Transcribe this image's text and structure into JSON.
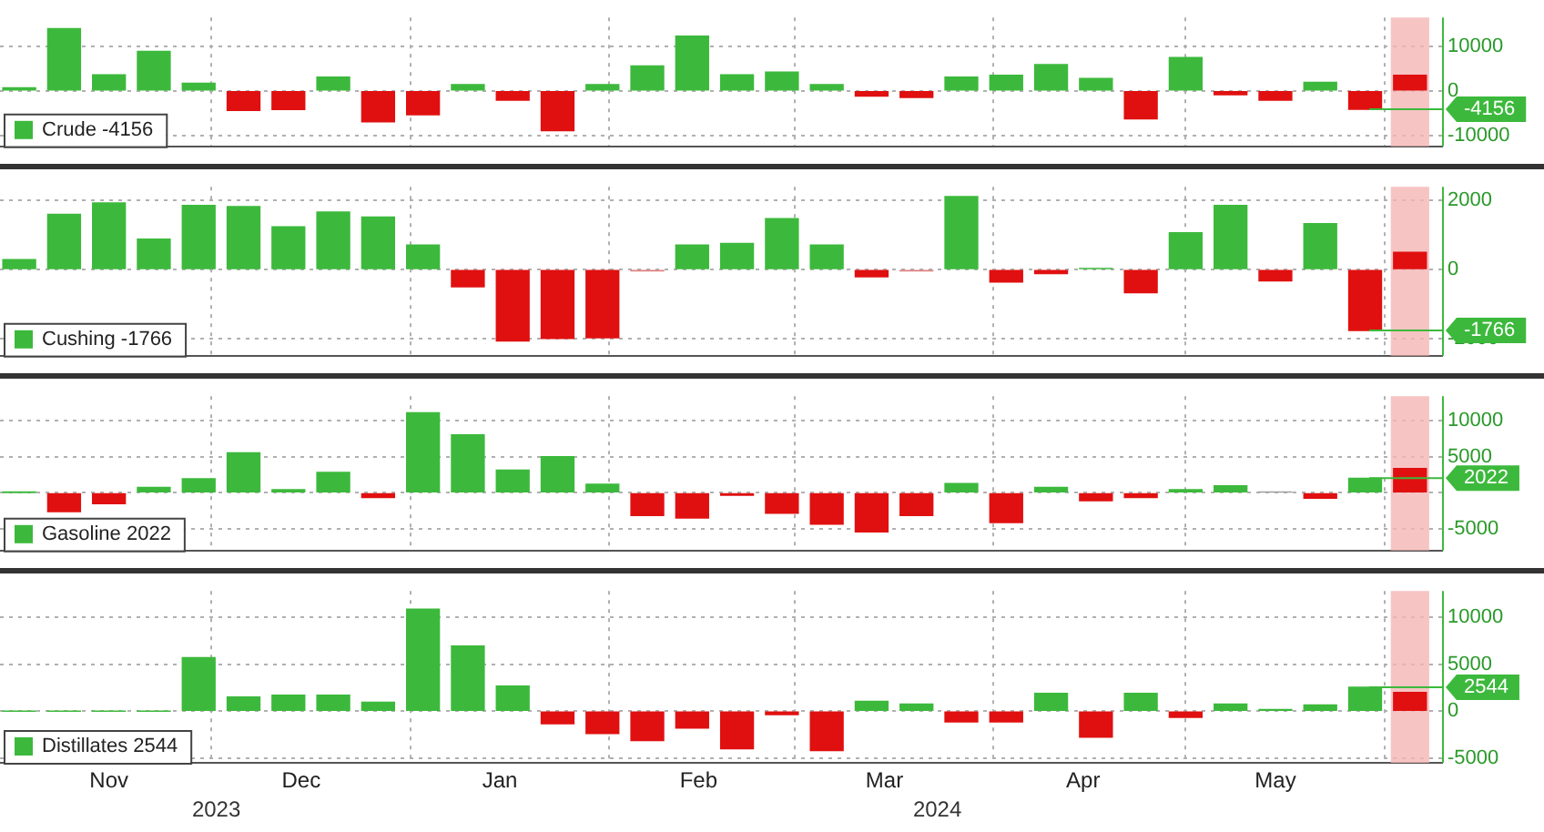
{
  "chart_data": [
    {
      "type": "bar",
      "x": [
        "2023-11-01",
        "2023-11-08",
        "2023-11-15",
        "2023-11-22",
        "2023-11-29",
        "2023-12-06",
        "2023-12-13",
        "2023-12-20",
        "2023-12-27",
        "2024-01-03",
        "2024-01-10",
        "2024-01-17",
        "2024-01-24",
        "2024-01-31",
        "2024-02-07",
        "2024-02-14",
        "2024-02-21",
        "2024-02-28",
        "2024-03-06",
        "2024-03-13",
        "2024-03-20",
        "2024-03-27",
        "2024-04-03",
        "2024-04-10",
        "2024-04-17",
        "2024-04-24",
        "2024-05-01",
        "2024-05-08",
        "2024-05-15",
        "2024-05-22",
        "2024-05-29",
        "2024-06-05"
      ],
      "series": [
        {
          "name": "Crude -4156",
          "color": "#3cb93c",
          "colors": [
            "#3cb93c",
            "#3cb93c",
            "#3cb93c",
            "#3cb93c",
            "#3cb93c",
            "#e01010",
            "#e01010",
            "#3cb93c",
            "#e01010",
            "#e01010",
            "#3cb93c",
            "#e01010",
            "#e01010",
            "#3cb93c",
            "#3cb93c",
            "#3cb93c",
            "#3cb93c",
            "#3cb93c",
            "#3cb93c",
            "#e01010",
            "#e01010",
            "#3cb93c",
            "#3cb93c",
            "#3cb93c",
            "#3cb93c",
            "#e01010",
            "#3cb93c",
            "#e01010",
            "#e01010",
            "#3cb93c",
            "#e01010",
            "#e01010"
          ],
          "values": [
            700,
            14000,
            3600,
            8900,
            1700,
            -4400,
            -4200,
            3100,
            -7000,
            -5400,
            1400,
            -2100,
            -9000,
            1400,
            5600,
            12300,
            3600,
            4200,
            1400,
            -1200,
            -1500,
            3100,
            3500,
            5900,
            2800,
            -6300,
            7500,
            -900,
            -2100,
            1900,
            -4156,
            3500
          ]
        }
      ],
      "xlim": [
        "2023-10-29",
        "2024-06-10"
      ],
      "xticks": [
        {
          "value": "2023-12-01",
          "label": null
        },
        {
          "value": "2024-01-01",
          "label": null
        },
        {
          "value": "2024-02-01",
          "label": null
        },
        {
          "value": "2024-03-01",
          "label": null
        },
        {
          "value": "2024-04-01",
          "label": null
        },
        {
          "value": "2024-05-01",
          "label": null
        },
        {
          "value": "2024-06-01",
          "label": null
        }
      ],
      "ylim": [
        -12500,
        16500
      ],
      "yticks": [
        -10000,
        0,
        10000
      ],
      "grid": true,
      "legend": "bottom left",
      "tick_labels": "y",
      "ref_lines": [
        {
          "axis": "y",
          "value": -4156,
          "label": "-4156",
          "color": "#3cb93c"
        }
      ],
      "bands": [
        {
          "axis": "x",
          "from": "2024-06-02",
          "to": "2024-06-08",
          "color": "#f5b5b5"
        }
      ]
    },
    {
      "type": "bar",
      "x": [
        "2023-11-01",
        "2023-11-08",
        "2023-11-15",
        "2023-11-22",
        "2023-11-29",
        "2023-12-06",
        "2023-12-13",
        "2023-12-20",
        "2023-12-27",
        "2024-01-03",
        "2024-01-10",
        "2024-01-17",
        "2024-01-24",
        "2024-01-31",
        "2024-02-07",
        "2024-02-14",
        "2024-02-21",
        "2024-02-28",
        "2024-03-06",
        "2024-03-13",
        "2024-03-20",
        "2024-03-27",
        "2024-04-03",
        "2024-04-10",
        "2024-04-17",
        "2024-04-24",
        "2024-05-01",
        "2024-05-08",
        "2024-05-15",
        "2024-05-22",
        "2024-05-29",
        "2024-06-05"
      ],
      "series": [
        {
          "name": "Cushing -1766",
          "color": "#3cb93c",
          "colors": [
            "#3cb93c",
            "#3cb93c",
            "#3cb93c",
            "#3cb93c",
            "#3cb93c",
            "#3cb93c",
            "#3cb93c",
            "#3cb93c",
            "#3cb93c",
            "#3cb93c",
            "#e01010",
            "#e01010",
            "#e01010",
            "#e01010",
            "#e08080",
            "#3cb93c",
            "#3cb93c",
            "#3cb93c",
            "#3cb93c",
            "#e01010",
            "#e08080",
            "#3cb93c",
            "#e01010",
            "#e01010",
            "#3cb93c",
            "#e01010",
            "#3cb93c",
            "#3cb93c",
            "#e01010",
            "#3cb93c",
            "#e01010",
            "#e01010"
          ],
          "values": [
            290,
            1600,
            1930,
            880,
            1860,
            1830,
            1240,
            1670,
            1520,
            710,
            -500,
            -2070,
            -2000,
            -1980,
            -40,
            710,
            760,
            1480,
            710,
            -210,
            -40,
            2120,
            -360,
            -120,
            30,
            -670,
            1070,
            1860,
            -330,
            1330,
            -1766,
            500
          ]
        }
      ],
      "xlim": [
        "2023-10-29",
        "2024-06-10"
      ],
      "xticks": [
        {
          "value": "2023-12-01",
          "label": null
        },
        {
          "value": "2024-01-01",
          "label": null
        },
        {
          "value": "2024-02-01",
          "label": null
        },
        {
          "value": "2024-03-01",
          "label": null
        },
        {
          "value": "2024-04-01",
          "label": null
        },
        {
          "value": "2024-05-01",
          "label": null
        },
        {
          "value": "2024-06-01",
          "label": null
        }
      ],
      "ylim": [
        -2500,
        2400
      ],
      "yticks": [
        -2000,
        0,
        2000
      ],
      "grid": true,
      "legend": "bottom left",
      "tick_labels": "y",
      "ref_lines": [
        {
          "axis": "y",
          "value": -1766,
          "label": "-1766",
          "color": "#3cb93c"
        }
      ],
      "bands": [
        {
          "axis": "x",
          "from": "2024-06-02",
          "to": "2024-06-08",
          "color": "#f5b5b5"
        }
      ]
    },
    {
      "type": "bar",
      "x": [
        "2023-11-01",
        "2023-11-08",
        "2023-11-15",
        "2023-11-22",
        "2023-11-29",
        "2023-12-06",
        "2023-12-13",
        "2023-12-20",
        "2023-12-27",
        "2024-01-03",
        "2024-01-10",
        "2024-01-17",
        "2024-01-24",
        "2024-01-31",
        "2024-02-07",
        "2024-02-14",
        "2024-02-21",
        "2024-02-28",
        "2024-03-06",
        "2024-03-13",
        "2024-03-20",
        "2024-03-27",
        "2024-04-03",
        "2024-04-10",
        "2024-04-17",
        "2024-04-24",
        "2024-05-01",
        "2024-05-08",
        "2024-05-15",
        "2024-05-22",
        "2024-05-29",
        "2024-06-05"
      ],
      "series": [
        {
          "name": "Gasoline 2022",
          "color": "#3cb93c",
          "colors": [
            "#3cb93c",
            "#e01010",
            "#e01010",
            "#3cb93c",
            "#3cb93c",
            "#3cb93c",
            "#3cb93c",
            "#3cb93c",
            "#e01010",
            "#3cb93c",
            "#3cb93c",
            "#3cb93c",
            "#3cb93c",
            "#3cb93c",
            "#e01010",
            "#e01010",
            "#e01010",
            "#e01010",
            "#e01010",
            "#e01010",
            "#e01010",
            "#3cb93c",
            "#e01010",
            "#3cb93c",
            "#e01010",
            "#e01010",
            "#3cb93c",
            "#3cb93c",
            "#a0a0a0",
            "#e01010",
            "#3cb93c",
            "#e01010"
          ],
          "values": [
            50,
            -2600,
            -1500,
            760,
            1960,
            5540,
            430,
            2830,
            -650,
            11090,
            8040,
            3150,
            5000,
            1200,
            -3150,
            -3480,
            -330,
            -2830,
            -4350,
            -5430,
            -3150,
            1300,
            -4130,
            760,
            -1090,
            -650,
            430,
            980,
            100,
            -760,
            2022,
            3370
          ]
        }
      ],
      "xlim": [
        "2023-10-29",
        "2024-06-10"
      ],
      "xticks": [
        {
          "value": "2023-12-01",
          "label": null
        },
        {
          "value": "2024-01-01",
          "label": null
        },
        {
          "value": "2024-02-01",
          "label": null
        },
        {
          "value": "2024-03-01",
          "label": null
        },
        {
          "value": "2024-04-01",
          "label": null
        },
        {
          "value": "2024-05-01",
          "label": null
        },
        {
          "value": "2024-06-01",
          "label": null
        }
      ],
      "ylim": [
        -8000,
        13400
      ],
      "yticks": [
        -5000,
        {
          "value": 0,
          "label": null
        },
        5000,
        10000
      ],
      "grid": true,
      "legend": "bottom left",
      "tick_labels": "y",
      "ref_lines": [
        {
          "axis": "y",
          "value": 2022,
          "label": "2022",
          "color": "#3cb93c"
        }
      ],
      "bands": [
        {
          "axis": "x",
          "from": "2024-06-02",
          "to": "2024-06-08",
          "color": "#f5b5b5"
        }
      ]
    },
    {
      "type": "bar",
      "x": [
        "2023-11-01",
        "2023-11-08",
        "2023-11-15",
        "2023-11-22",
        "2023-11-29",
        "2023-12-06",
        "2023-12-13",
        "2023-12-20",
        "2023-12-27",
        "2024-01-03",
        "2024-01-10",
        "2024-01-17",
        "2024-01-24",
        "2024-01-31",
        "2024-02-07",
        "2024-02-14",
        "2024-02-21",
        "2024-02-28",
        "2024-03-06",
        "2024-03-13",
        "2024-03-20",
        "2024-03-27",
        "2024-04-03",
        "2024-04-10",
        "2024-04-17",
        "2024-04-24",
        "2024-05-01",
        "2024-05-08",
        "2024-05-15",
        "2024-05-22",
        "2024-05-29",
        "2024-06-05"
      ],
      "series": [
        {
          "name": "Distillates 2544",
          "color": "#3cb93c",
          "colors": [
            "#3cb93c",
            "#3cb93c",
            "#3cb93c",
            "#3cb93c",
            "#3cb93c",
            "#3cb93c",
            "#3cb93c",
            "#3cb93c",
            "#3cb93c",
            "#3cb93c",
            "#3cb93c",
            "#3cb93c",
            "#e01010",
            "#e01010",
            "#e01010",
            "#e01010",
            "#e01010",
            "#e01010",
            "#e01010",
            "#3cb93c",
            "#3cb93c",
            "#e01010",
            "#e01010",
            "#3cb93c",
            "#e01010",
            "#3cb93c",
            "#e01010",
            "#3cb93c",
            "#3cb93c",
            "#3cb93c",
            "#3cb93c",
            "#e01010"
          ],
          "values": [
            0,
            0,
            0,
            0,
            5700,
            1520,
            1710,
            1710,
            950,
            10860,
            6950,
            2670,
            -1330,
            -2380,
            -3140,
            -1810,
            -4000,
            -380,
            -4190,
            1050,
            760,
            -1140,
            -1140,
            1900,
            -2760,
            1900,
            -670,
            760,
            190,
            670,
            2544,
            2000
          ]
        }
      ],
      "xlim": [
        "2023-10-29",
        "2024-06-10"
      ],
      "xticks": [
        {
          "value": "2023-11-15",
          "label": "Nov"
        },
        {
          "value": "2023-12-01",
          "label": null
        },
        {
          "value": "2023-12-15",
          "label": "Dec"
        },
        {
          "value": "2024-01-01",
          "label": null
        },
        {
          "value": "2024-01-15",
          "label": "Jan"
        },
        {
          "value": "2024-02-01",
          "label": null
        },
        {
          "value": "2024-02-15",
          "label": "Feb"
        },
        {
          "value": "2024-03-01",
          "label": null
        },
        {
          "value": "2024-03-15",
          "label": "Mar"
        },
        {
          "value": "2024-04-01",
          "label": null
        },
        {
          "value": "2024-04-15",
          "label": "Apr"
        },
        {
          "value": "2024-05-01",
          "label": null
        },
        {
          "value": "2024-05-15",
          "label": "May"
        },
        {
          "value": "2024-06-01",
          "label": null
        }
      ],
      "ylim": [
        -5500,
        12800
      ],
      "yticks": [
        -5000,
        0,
        5000,
        10000
      ],
      "grid": true,
      "legend": "bottom left",
      "ref_lines": [
        {
          "axis": "y",
          "value": 2544,
          "label": "2544",
          "color": "#3cb93c"
        }
      ],
      "bands": [
        {
          "axis": "x",
          "from": "2024-06-02",
          "to": "2024-06-08",
          "color": "#f5b5b5"
        }
      ],
      "annotations": [
        "2023",
        "2024"
      ]
    }
  ]
}
